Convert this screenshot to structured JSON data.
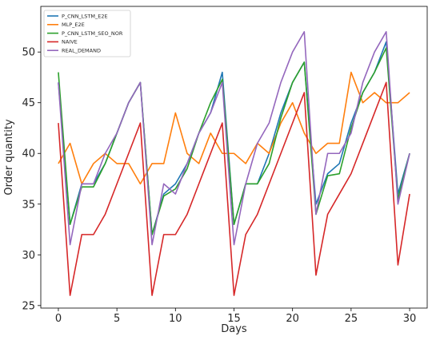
{
  "chart_data": {
    "type": "line",
    "title": "",
    "xlabel": "Days",
    "ylabel": "Order quantity",
    "xlim": [
      -1.5,
      31.5
    ],
    "ylim": [
      24.75,
      54.5
    ],
    "xticks": [
      0,
      5,
      10,
      15,
      20,
      25,
      30
    ],
    "yticks": [
      25,
      30,
      35,
      40,
      45,
      50
    ],
    "grid": false,
    "legend_position": "top-left",
    "x": [
      0,
      1,
      2,
      3,
      4,
      5,
      6,
      7,
      8,
      9,
      10,
      11,
      12,
      13,
      14,
      15,
      16,
      17,
      18,
      19,
      20,
      21,
      22,
      23,
      24,
      25,
      26,
      27,
      28,
      29,
      30
    ],
    "series": [
      {
        "name": "P_CNN_LSTM_E2E",
        "color": "#1f77b4",
        "values": [
          47,
          33,
          37,
          37,
          39,
          42,
          45,
          47,
          32,
          36,
          37,
          39,
          42,
          44,
          48,
          33,
          37,
          37,
          40,
          44,
          47,
          49,
          35,
          38,
          39,
          43,
          46,
          48,
          51,
          36,
          40
        ]
      },
      {
        "name": "MLP_E2E",
        "color": "#ff7f0e",
        "values": [
          39,
          41,
          37,
          39,
          40,
          39,
          39,
          37,
          39,
          39,
          44,
          40,
          39,
          42,
          40,
          40,
          39,
          41,
          40,
          43,
          45,
          42,
          40,
          41,
          41,
          48,
          45,
          46,
          45,
          45,
          46
        ]
      },
      {
        "name": "P_CNN_LSTM_SEO_NOR",
        "color": "#2ca02c",
        "values": [
          48,
          33,
          36.7,
          36.7,
          39,
          42,
          45,
          47,
          32,
          35.8,
          36.5,
          38.5,
          42,
          45,
          47.3,
          33,
          37,
          37,
          39,
          43.5,
          47,
          49,
          34,
          37.8,
          38,
          42.5,
          46,
          48,
          50.4,
          35.5,
          40
        ]
      },
      {
        "name": "NAIVE",
        "color": "#d62728",
        "values": [
          43,
          26,
          32,
          32,
          34,
          37,
          40,
          43,
          26,
          32,
          32,
          34,
          37,
          40,
          43,
          26,
          32,
          34,
          37,
          40,
          43,
          46,
          28,
          34,
          36,
          38,
          41,
          44,
          47,
          29,
          36
        ]
      },
      {
        "name": "REAL_DEMAND",
        "color": "#9467bd",
        "values": [
          47,
          31,
          37,
          37,
          40,
          42,
          45,
          47,
          31,
          37,
          36,
          39,
          42,
          44,
          47,
          31,
          37,
          41,
          43,
          47,
          50,
          52,
          34,
          40,
          40,
          42,
          47,
          50,
          52,
          35,
          40
        ]
      }
    ]
  }
}
